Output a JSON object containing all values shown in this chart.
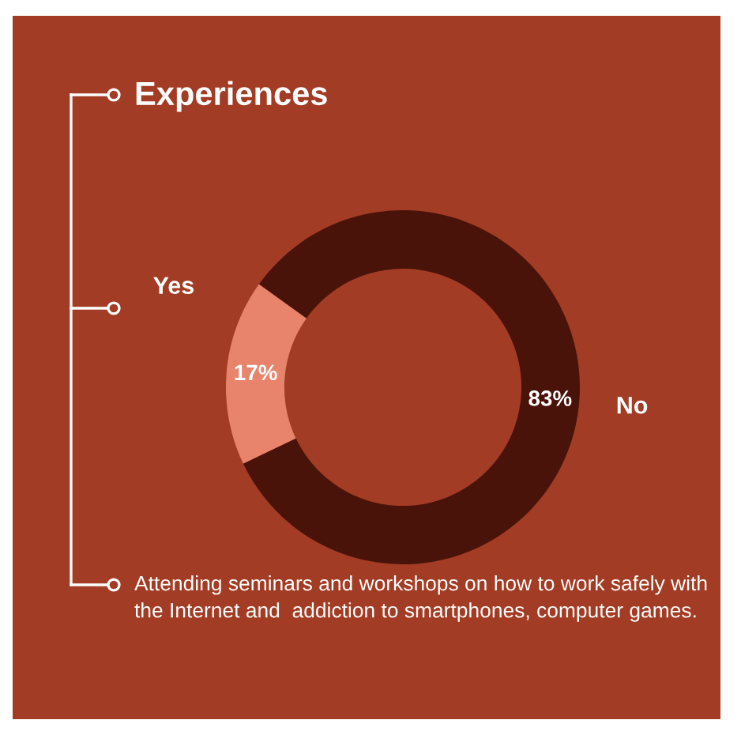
{
  "chart_data": {
    "type": "donut",
    "title": "Experiences",
    "categories": [
      "Yes",
      "No"
    ],
    "values": [
      17,
      83
    ],
    "colors": [
      "#e8846c",
      "#4a130a"
    ],
    "value_labels": [
      "17%",
      "83%"
    ],
    "annotations": [
      "Attending seminars and workshops on how to work safely with the Internet and  addiction to smartphones, computer games."
    ],
    "legend": false
  }
}
